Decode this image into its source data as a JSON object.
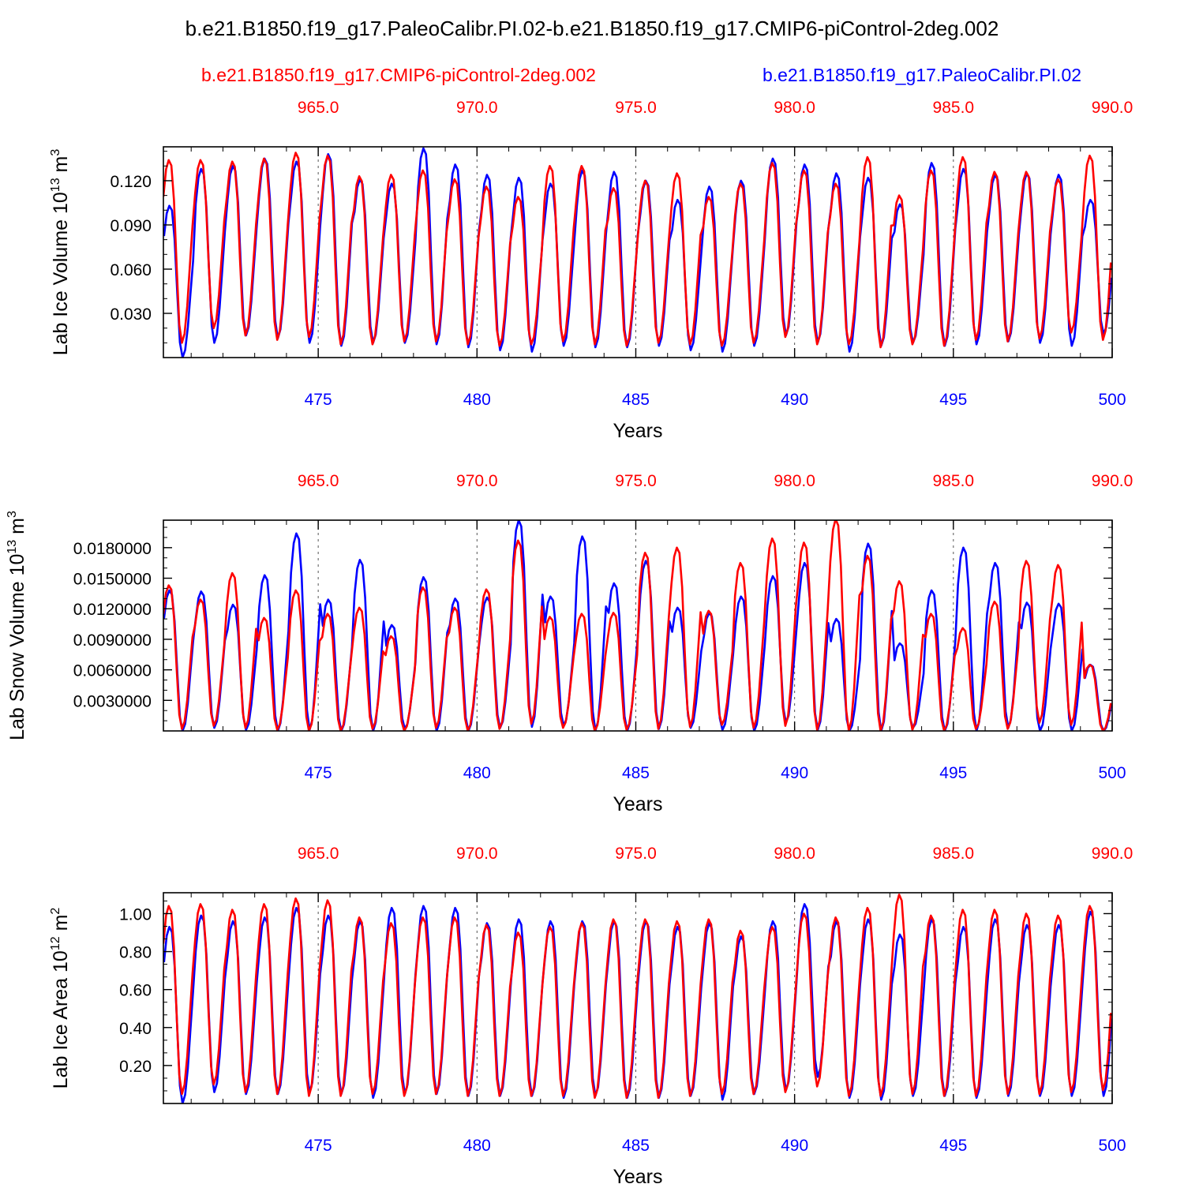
{
  "figure": {
    "title": "b.e21.B1850.f19_g17.PaleoCalibr.PI.02-b.e21.B1850.f19_g17.CMIP6-piControl-2deg.002",
    "legend_left": "b.e21.B1850.f19_g17.CMIP6-piControl-2deg.002",
    "legend_right": "b.e21.B1850.f19_g17.PaleoCalibr.PI.02",
    "colors": {
      "red": "#ff0000",
      "blue": "#0000ff",
      "axis": "#000000"
    }
  },
  "chart_data": [
    {
      "type": "line",
      "ylabel_main": "Lab Ice Volume 10",
      "ylabel_exp": "13",
      "ylabel_unit": " m",
      "ylabel_unit_exp": "3",
      "xlabel": "Years",
      "xlim": [
        470.125,
        500
      ],
      "ylim": [
        0.0,
        0.143
      ],
      "yticks": [
        0.03,
        0.06,
        0.09,
        0.12
      ],
      "yticklabels": [
        "0.030",
        "0.060",
        "0.090",
        "0.120"
      ],
      "xticks_bottom": [
        475,
        480,
        485,
        490,
        495,
        500
      ],
      "xticklabels_bottom": [
        "475",
        "480",
        "485",
        "490",
        "495",
        "500"
      ],
      "xticklabels_top": [
        "965.0",
        "970.0",
        "975.0",
        "980.0",
        "985.0",
        "990.0"
      ],
      "series": [
        {
          "name": "b.e21.B1850.f19_g17.PaleoCalibr.PI.02",
          "color": "blue",
          "peaks": [
            0.103,
            0.128,
            0.13,
            0.135,
            0.133,
            0.138,
            0.121,
            0.118,
            0.142,
            0.131,
            0.124,
            0.122,
            0.118,
            0.127,
            0.126,
            0.12,
            0.107,
            0.116,
            0.12,
            0.135,
            0.131,
            0.125,
            0.122,
            0.104,
            0.132,
            0.128,
            0.124,
            0.125,
            0.124,
            0.107
          ],
          "troughs": [
            0.0,
            0.01,
            0.015,
            0.013,
            0.01,
            0.008,
            0.01,
            0.01,
            0.009,
            0.007,
            0.005,
            0.004,
            0.008,
            0.007,
            0.007,
            0.008,
            0.005,
            0.004,
            0.008,
            0.015,
            0.01,
            0.004,
            0.008,
            0.01,
            0.008,
            0.009,
            0.011,
            0.01,
            0.008,
            0.016
          ]
        },
        {
          "name": "b.e21.B1850.f19_g17.CMIP6-piControl-2deg.002",
          "color": "red",
          "peaks": [
            0.134,
            0.134,
            0.133,
            0.135,
            0.139,
            0.137,
            0.123,
            0.124,
            0.127,
            0.121,
            0.116,
            0.109,
            0.13,
            0.13,
            0.115,
            0.12,
            0.125,
            0.109,
            0.118,
            0.132,
            0.127,
            0.118,
            0.136,
            0.11,
            0.127,
            0.136,
            0.126,
            0.126,
            0.121,
            0.137
          ],
          "troughs": [
            0.01,
            0.02,
            0.015,
            0.012,
            0.014,
            0.009,
            0.009,
            0.011,
            0.011,
            0.009,
            0.008,
            0.009,
            0.011,
            0.009,
            0.008,
            0.01,
            0.009,
            0.008,
            0.01,
            0.014,
            0.009,
            0.009,
            0.007,
            0.009,
            0.008,
            0.012,
            0.011,
            0.013,
            0.017,
            0.012
          ]
        }
      ]
    },
    {
      "type": "line",
      "ylabel_main": "Lab Snow Volume 10",
      "ylabel_exp": "13",
      "ylabel_unit": " m",
      "ylabel_unit_exp": "3",
      "xlabel": "Years",
      "xlim": [
        470.125,
        500
      ],
      "ylim": [
        0.0,
        0.0207
      ],
      "yticks": [
        0.003,
        0.006,
        0.009,
        0.012,
        0.015,
        0.018
      ],
      "yticklabels": [
        "0.0030000",
        "0.0060000",
        "0.0090000",
        "0.0120000",
        "0.0150000",
        "0.0180000"
      ],
      "xticks_bottom": [
        475,
        480,
        485,
        490,
        495,
        500
      ],
      "xticklabels_bottom": [
        "475",
        "480",
        "485",
        "490",
        "495",
        "500"
      ],
      "xticklabels_top": [
        "965.0",
        "970.0",
        "975.0",
        "980.0",
        "985.0",
        "990.0"
      ],
      "series": [
        {
          "name": "b.e21.B1850.f19_g17.PaleoCalibr.PI.02",
          "color": "blue",
          "peaks": [
            0.0138,
            0.0137,
            0.0124,
            0.0153,
            0.0194,
            0.0129,
            0.0168,
            0.0104,
            0.0151,
            0.013,
            0.0131,
            0.0207,
            0.0132,
            0.0191,
            0.0145,
            0.0167,
            0.0121,
            0.0116,
            0.0132,
            0.0152,
            0.0165,
            0.011,
            0.0184,
            0.0086,
            0.0138,
            0.018,
            0.0165,
            0.0126,
            0.0125,
            0.0065
          ],
          "troughs": [
            0.0,
            0.0003,
            0.0001,
            0.0,
            0.0001,
            0.0,
            0.0,
            0.0002,
            0.0,
            0.0,
            0.0003,
            0.0004,
            0.0005,
            0.0,
            0.0,
            0.0002,
            0.0003,
            0.0001,
            0.0,
            0.0008,
            0.0001,
            0.0,
            0.0,
            0.0003,
            0.0,
            0.0,
            0.0003,
            0.0,
            0.0,
            0.0
          ]
        },
        {
          "name": "b.e21.B1850.f19_g17.CMIP6-piControl-2deg.002",
          "color": "red",
          "peaks": [
            0.0143,
            0.0129,
            0.0155,
            0.0111,
            0.0138,
            0.0115,
            0.0121,
            0.0093,
            0.0141,
            0.0121,
            0.0139,
            0.0187,
            0.0112,
            0.0115,
            0.0116,
            0.0175,
            0.018,
            0.0118,
            0.0165,
            0.0189,
            0.0185,
            0.0208,
            0.0172,
            0.0147,
            0.0115,
            0.0101,
            0.0127,
            0.0167,
            0.0163,
            0.0065
          ],
          "troughs": [
            0.0002,
            0.0005,
            0.0003,
            0.0001,
            0.0,
            0.0,
            0.0002,
            0.0,
            0.0003,
            0.0,
            0.0002,
            0.0007,
            0.0003,
            0.0,
            0.0001,
            0.0002,
            0.0004,
            0.0006,
            0.0003,
            0.0005,
            0.0001,
            0.0,
            0.0,
            0.0001,
            0.0,
            0.0002,
            0.0002,
            0.0008,
            0.0006,
            0.0
          ]
        }
      ]
    },
    {
      "type": "line",
      "ylabel_main": "Lab Ice Area 10",
      "ylabel_exp": "12",
      "ylabel_unit": " m",
      "ylabel_unit_exp": "2",
      "xlabel": "Years",
      "xlim": [
        470.125,
        500
      ],
      "ylim": [
        0.0,
        1.11
      ],
      "yticks": [
        0.2,
        0.4,
        0.6,
        0.8,
        1.0
      ],
      "yticklabels": [
        "0.20",
        "0.40",
        "0.60",
        "0.80",
        "1.00"
      ],
      "xticks_bottom": [
        475,
        480,
        485,
        490,
        495,
        500
      ],
      "xticklabels_bottom": [
        "475",
        "480",
        "485",
        "490",
        "495",
        "500"
      ],
      "xticklabels_top": [
        "965.0",
        "970.0",
        "975.0",
        "980.0",
        "985.0",
        "990.0"
      ],
      "series": [
        {
          "name": "b.e21.B1850.f19_g17.PaleoCalibr.PI.02",
          "color": "blue",
          "peaks": [
            0.93,
            0.99,
            0.96,
            0.98,
            1.03,
            0.99,
            0.96,
            1.03,
            1.04,
            1.03,
            0.95,
            0.97,
            0.96,
            0.96,
            0.96,
            0.96,
            0.93,
            0.95,
            0.88,
            0.96,
            1.05,
            0.96,
            0.97,
            0.89,
            0.97,
            0.93,
            0.97,
            0.94,
            0.94,
            1.01,
            0.93
          ],
          "troughs": [
            0.0,
            0.06,
            0.05,
            0.05,
            0.06,
            0.05,
            0.03,
            0.05,
            0.05,
            0.04,
            0.04,
            0.04,
            0.03,
            0.04,
            0.03,
            0.03,
            0.04,
            0.02,
            0.05,
            0.07,
            0.14,
            0.03,
            0.02,
            0.04,
            0.04,
            0.03,
            0.04,
            0.04,
            0.04,
            0.04,
            0.03
          ]
        },
        {
          "name": "b.e21.B1850.f19_g17.CMIP6-piControl-2deg.002",
          "color": "red",
          "peaks": [
            1.04,
            1.05,
            1.02,
            1.05,
            1.08,
            1.07,
            0.98,
            0.95,
            0.98,
            0.98,
            0.94,
            0.9,
            0.93,
            0.95,
            0.97,
            0.97,
            0.96,
            0.97,
            0.91,
            0.93,
            1.0,
            0.98,
            1.03,
            1.1,
            0.99,
            1.02,
            1.02,
            1.0,
            0.99,
            1.04,
            1.1
          ],
          "troughs": [
            0.05,
            0.1,
            0.06,
            0.05,
            0.04,
            0.04,
            0.05,
            0.04,
            0.05,
            0.04,
            0.04,
            0.04,
            0.04,
            0.03,
            0.03,
            0.03,
            0.04,
            0.05,
            0.05,
            0.06,
            0.09,
            0.04,
            0.04,
            0.05,
            0.04,
            0.04,
            0.05,
            0.05,
            0.06,
            0.07,
            0.04
          ]
        }
      ]
    }
  ]
}
